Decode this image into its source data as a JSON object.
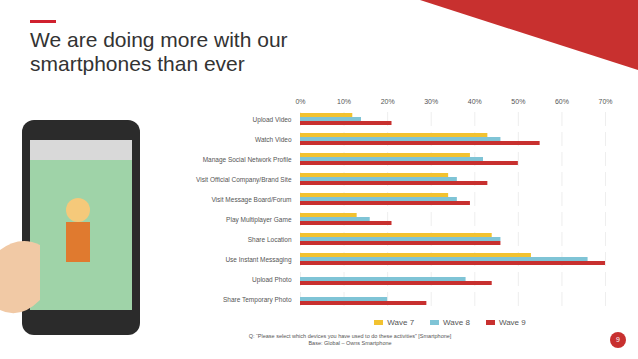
{
  "chart_data": {
    "type": "bar",
    "orientation": "horizontal",
    "title": "We are doing more with our smartphones than ever",
    "categories": [
      "Upload Video",
      "Watch Video",
      "Manage Social Network Profile",
      "Visit Official Company/Brand Site",
      "Visit Message Board/Forum",
      "Play Multiplayer Game",
      "Share Location",
      "Use Instant Messaging",
      "Upload Photo",
      "Share Temporary Photo"
    ],
    "series": [
      {
        "name": "Wave 7",
        "color": "#f2c230",
        "values": [
          12,
          43,
          39,
          34,
          34,
          13,
          44,
          53,
          null,
          null
        ]
      },
      {
        "name": "Wave 8",
        "color": "#7fc4d6",
        "values": [
          14,
          46,
          42,
          36,
          36,
          16,
          46,
          66,
          38,
          20
        ]
      },
      {
        "name": "Wave 9",
        "color": "#c8302f",
        "values": [
          21,
          55,
          50,
          43,
          39,
          21,
          46,
          70,
          44,
          29
        ]
      }
    ],
    "xlim": [
      0,
      70
    ],
    "xticks": [
      {
        "value": 0,
        "label": "0%"
      },
      {
        "value": 10,
        "label": "10%"
      },
      {
        "value": 20,
        "label": "20%"
      },
      {
        "value": 30,
        "label": "30%"
      },
      {
        "value": 40,
        "label": "40%"
      },
      {
        "value": 50,
        "label": "50%"
      },
      {
        "value": 60,
        "label": "60%"
      },
      {
        "value": 70,
        "label": "70%"
      }
    ],
    "grid": true,
    "legend": "bottom",
    "footnote": [
      "Q: “Please select which devices you have used to do these activities” [Smartphone]",
      "Base: Global – Owns Smartphone"
    ],
    "page_number": "9"
  }
}
